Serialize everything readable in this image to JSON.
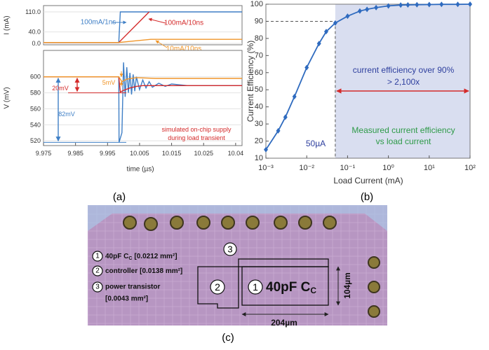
{
  "chart_data": [
    {
      "type": "line",
      "y_label": "I (mA)",
      "xlim": [
        9.975,
        10.037
      ],
      "ylim": [
        -5,
        132
      ],
      "yticks": [
        {
          "value": 0,
          "label": "0.0"
        },
        {
          "value": 40,
          "label": "40.0"
        },
        {
          "value": 110,
          "label": "110.0"
        }
      ],
      "grid": true,
      "series": [
        {
          "name": "100mA/1ns",
          "color": "#3f7fc6",
          "x": [
            9.975,
            9.9985,
            9.999,
            10.037
          ],
          "values": [
            3,
            3,
            110,
            110
          ]
        },
        {
          "name": "100mA/10ns",
          "color": "#d42a2a",
          "x": [
            9.975,
            9.9985,
            10.008
          ],
          "values": [
            3,
            3,
            110
          ]
        },
        {
          "name": "10mA/10ns",
          "color": "#f0962a",
          "x": [
            9.975,
            9.9985,
            10.0085,
            10.037
          ],
          "values": [
            3,
            3,
            14,
            14
          ]
        }
      ]
    },
    {
      "type": "line",
      "y_label": "V (mV)",
      "x_label": "time (µs)",
      "xlim": [
        9.975,
        10.037
      ],
      "ylim": [
        514,
        633
      ],
      "xticks": [
        9.975,
        9.985,
        9.995,
        10.005,
        10.015,
        10.025,
        {
          "value": 10.035,
          "label": "10.04"
        }
      ],
      "yticks": [
        520,
        540,
        560,
        580,
        600
      ],
      "grid": true,
      "annotations": [
        "5mV",
        "20mV",
        "82mV",
        "simulated on-chip supply",
        "during load transient"
      ],
      "series": [
        {
          "color": "#3f7fc6",
          "x": [
            9.975,
            9.9985,
            9.9986,
            9.9995,
            10.0,
            10.0005,
            10.001,
            10.0015,
            10.002,
            10.0025,
            10.003,
            10.0035,
            10.004,
            10.005,
            10.006,
            10.007,
            10.008,
            10.009,
            10.011,
            10.013,
            10.015,
            10.02,
            10.037
          ],
          "values": [
            600,
            600,
            518,
            530,
            618,
            575,
            612,
            580,
            605,
            578,
            603,
            582,
            600,
            584,
            596,
            586,
            594,
            587,
            592,
            588,
            591,
            589,
            589
          ]
        },
        {
          "color": "#d42a2a",
          "x": [
            9.975,
            9.9985,
            9.999,
            10.0,
            10.002,
            10.004,
            10.006,
            10.01,
            10.037
          ],
          "values": [
            600,
            600,
            581,
            583,
            586,
            588,
            589,
            589,
            589
          ]
        },
        {
          "color": "#f0962a",
          "x": [
            9.975,
            9.9985,
            9.9995,
            10.001,
            10.004,
            10.01,
            10.037
          ],
          "values": [
            600,
            600,
            594,
            597,
            599,
            598,
            598
          ]
        }
      ]
    },
    {
      "type": "line",
      "y_label": "Current Efficiency (%)",
      "x_label": "Load Current (mA)",
      "log_x": true,
      "xlim": [
        0.001,
        100
      ],
      "ylim": [
        10,
        100
      ],
      "xticks": [
        {
          "value": 0.001,
          "label": "10⁻³"
        },
        {
          "value": 0.01,
          "label": "10⁻²"
        },
        {
          "value": 0.1,
          "label": "10⁻¹"
        },
        {
          "value": 1,
          "label": "10⁰"
        },
        {
          "value": 10,
          "label": "10¹"
        },
        {
          "value": 100,
          "label": "10²"
        }
      ],
      "yticks": [
        10,
        20,
        30,
        40,
        50,
        60,
        70,
        80,
        90,
        100
      ],
      "grid": false,
      "threshold_x": 0.05,
      "threshold_y": 90,
      "annotations": [
        "current efficiency over 90%",
        "> 2,100x",
        "50µA",
        "Measured current efficiency",
        "vs load current"
      ],
      "series": [
        {
          "color": "#2f6bbf",
          "x": [
            0.001,
            0.002,
            0.003,
            0.005,
            0.01,
            0.02,
            0.03,
            0.05,
            0.1,
            0.2,
            0.3,
            0.5,
            1,
            2,
            3,
            5,
            10,
            20,
            50,
            100
          ],
          "values": [
            15,
            26,
            34,
            46,
            63,
            77,
            84,
            89,
            93,
            96,
            97,
            98,
            99,
            99.5,
            99.6,
            99.7,
            99.8,
            99.9,
            99.9,
            100
          ]
        }
      ]
    }
  ],
  "photo": {
    "legend": [
      {
        "number": "1",
        "text": "40pF C",
        "sub": "C",
        "area": "[0.0212 mm²]"
      },
      {
        "number": "2",
        "text": "controller",
        "area": "[0.0138 mm²]"
      },
      {
        "number": "3",
        "text": "power transistor",
        "area": "[0.0043 mm²]"
      }
    ],
    "blocks": [
      {
        "number": "3"
      },
      {
        "number": "2"
      },
      {
        "number": "1",
        "text": "40pF C",
        "sub": "C"
      }
    ],
    "width": "204µm",
    "height": "104µm"
  },
  "captions": [
    "(a)",
    "(b)",
    "(c)"
  ]
}
